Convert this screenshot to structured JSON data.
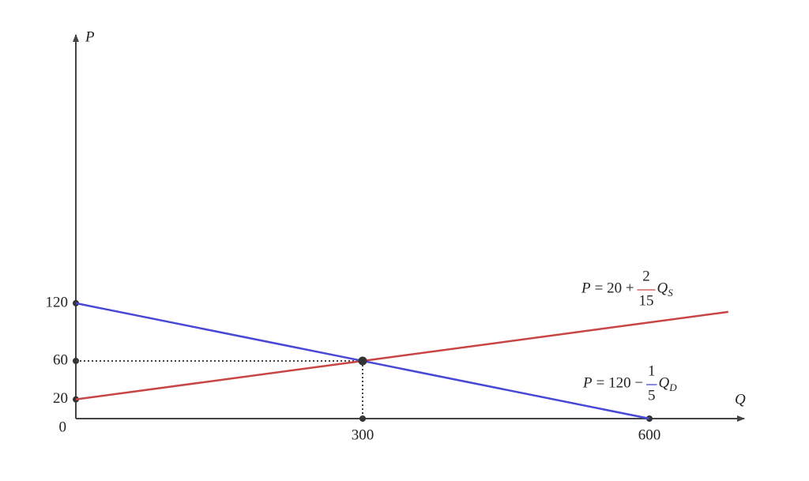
{
  "chart_data": {
    "type": "line",
    "x_label": "Q",
    "y_label": "P",
    "xlim": [
      0,
      700
    ],
    "ylim": [
      0,
      400
    ],
    "xticks": [
      300,
      600
    ],
    "yticks": [
      0,
      20,
      60,
      120
    ],
    "equilibrium": {
      "x": 300,
      "y": 60
    },
    "series": [
      {
        "color": "#c94545",
        "x": [
          0,
          300,
          682.5
        ],
        "values": [
          20,
          60,
          111
        ],
        "label": {
          "var": "P",
          "rest": "= 20 +",
          "num": "2",
          "den": "15",
          "q": "Q",
          "sub": "S"
        }
      },
      {
        "color": "#4848d6",
        "x": [
          0,
          300,
          600
        ],
        "values": [
          120,
          60,
          0
        ],
        "label": {
          "var": "P",
          "rest": "= 120 −",
          "num": "1",
          "den": "5",
          "q": "Q",
          "sub": "D"
        }
      }
    ]
  }
}
